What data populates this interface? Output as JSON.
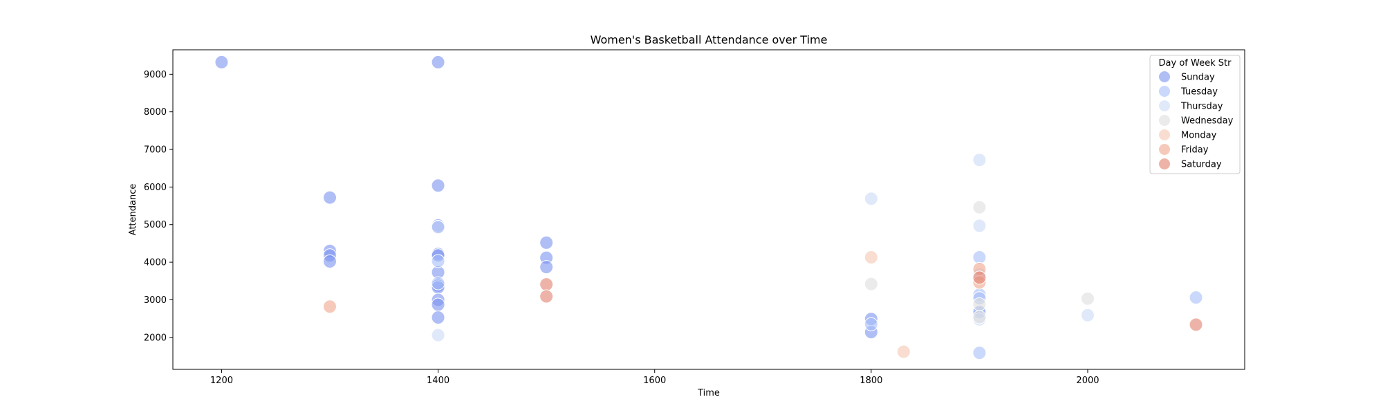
{
  "chart_data": {
    "type": "scatter",
    "title": "Women's Basketball Attendance over Time",
    "xlabel": "Time",
    "ylabel": "Attendance",
    "xlim": [
      1155,
      2145
    ],
    "ylim": [
      1150,
      9650
    ],
    "xticks": [
      1200,
      1400,
      1600,
      1800,
      2000
    ],
    "yticks": [
      2000,
      3000,
      4000,
      5000,
      6000,
      7000,
      8000,
      9000
    ],
    "grid": false,
    "legend": {
      "title": "Day of Week Str",
      "placement": "top-right"
    },
    "series": [
      {
        "name": "Sunday",
        "color": "#7b93f0",
        "points": [
          [
            1200,
            9320
          ],
          [
            1400,
            9320
          ],
          [
            1300,
            5720
          ],
          [
            1300,
            4300
          ],
          [
            1300,
            4180
          ],
          [
            1300,
            4020
          ],
          [
            1400,
            6040
          ],
          [
            1400,
            4980
          ],
          [
            1400,
            4940
          ],
          [
            1400,
            4220
          ],
          [
            1400,
            4180
          ],
          [
            1400,
            3730
          ],
          [
            1400,
            3380
          ],
          [
            1400,
            3330
          ],
          [
            1400,
            3000
          ],
          [
            1400,
            2870
          ],
          [
            1400,
            2530
          ],
          [
            1500,
            4520
          ],
          [
            1500,
            4120
          ],
          [
            1500,
            3870
          ],
          [
            1800,
            2490
          ],
          [
            1800,
            2140
          ],
          [
            1900,
            2660
          ]
        ]
      },
      {
        "name": "Tuesday",
        "color": "#a6bef8",
        "points": [
          [
            1400,
            4030
          ],
          [
            1400,
            3440
          ],
          [
            1800,
            2350
          ],
          [
            1900,
            4130
          ],
          [
            1900,
            3140
          ],
          [
            1900,
            3040
          ],
          [
            1900,
            2680
          ],
          [
            1900,
            1590
          ],
          [
            2100,
            3060
          ]
        ]
      },
      {
        "name": "Thursday",
        "color": "#cbdaf7",
        "points": [
          [
            1400,
            4930
          ],
          [
            1400,
            2060
          ],
          [
            1800,
            5690
          ],
          [
            1900,
            6720
          ],
          [
            1900,
            4970
          ],
          [
            1900,
            3680
          ],
          [
            1900,
            2480
          ],
          [
            2000,
            2590
          ]
        ]
      },
      {
        "name": "Wednesday",
        "color": "#dedede",
        "points": [
          [
            1800,
            3420
          ],
          [
            1900,
            5460
          ],
          [
            1900,
            2880
          ],
          [
            1900,
            2540
          ],
          [
            2000,
            3030
          ]
        ]
      },
      {
        "name": "Monday",
        "color": "#f5c6b2",
        "points": [
          [
            1800,
            4130
          ],
          [
            1830,
            1620
          ]
        ]
      },
      {
        "name": "Friday",
        "color": "#f0a68d",
        "points": [
          [
            1300,
            2820
          ],
          [
            1900,
            3820
          ],
          [
            1900,
            3460
          ]
        ]
      },
      {
        "name": "Saturday",
        "color": "#e2806e",
        "points": [
          [
            1500,
            3410
          ],
          [
            1500,
            3090
          ],
          [
            1900,
            3590
          ],
          [
            2100,
            2340
          ]
        ]
      }
    ]
  }
}
